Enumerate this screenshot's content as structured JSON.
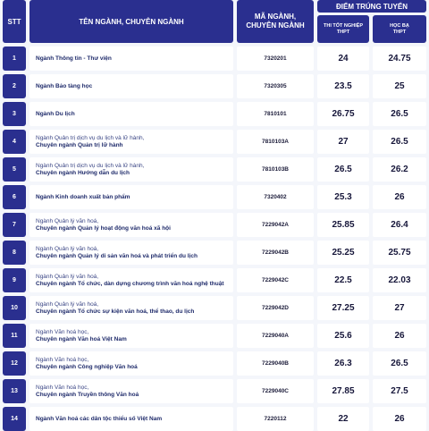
{
  "header": {
    "stt": "STT",
    "name": "TÊN NGÀNH, CHUYÊN NGÀNH",
    "code_line1": "MÃ NGÀNH,",
    "code_line2": "CHUYÊN NGÀNH",
    "score": "ĐIỂM TRÚNG TUYỂN",
    "score_pt_line1": "THI TỐT NGHIỆP",
    "score_pt_line2": "THPT",
    "score_hb_line1": "HỌC BẠ",
    "score_hb_line2": "THPT"
  },
  "rows": [
    {
      "stt": "1",
      "line1": "",
      "line2": "Ngành Thông tin - Thư viện",
      "code": "7320201",
      "pt": "24",
      "hb": "24.75"
    },
    {
      "stt": "2",
      "line1": "",
      "line2": "Ngành Bảo tàng học",
      "code": "7320305",
      "pt": "23.5",
      "hb": "25"
    },
    {
      "stt": "3",
      "line1": "",
      "line2": "Ngành Du lịch",
      "code": "7810101",
      "pt": "26.75",
      "hb": "26.5"
    },
    {
      "stt": "4",
      "line1": "Ngành Quản trị dịch vụ du lịch và lữ hành,",
      "line2": "Chuyên ngành Quản trị lữ hành",
      "code": "7810103A",
      "pt": "27",
      "hb": "26.5"
    },
    {
      "stt": "5",
      "line1": "Ngành Quản trị dịch vụ du lịch và lữ hành,",
      "line2": "Chuyên ngành Hướng dẫn du lịch",
      "code": "7810103B",
      "pt": "26.5",
      "hb": "26.2"
    },
    {
      "stt": "6",
      "line1": "",
      "line2": "Ngành Kinh doanh xuất bản phẩm",
      "code": "7320402",
      "pt": "25.3",
      "hb": "26"
    },
    {
      "stt": "7",
      "line1": "Ngành Quản lý văn hoá,",
      "line2": "Chuyên ngành Quản lý hoạt động văn hoá xã hội",
      "code": "7229042A",
      "pt": "25.85",
      "hb": "26.4"
    },
    {
      "stt": "8",
      "line1": "Ngành Quản lý văn hoá,",
      "line2": "Chuyên ngành Quản lý di sản văn hoá và phát triển du lịch",
      "code": "7229042B",
      "pt": "25.25",
      "hb": "25.75"
    },
    {
      "stt": "9",
      "line1": "Ngành Quản lý văn hoá,",
      "line2": "Chuyên ngành Tổ chức, dàn dựng chương trình văn hoá nghệ thuật",
      "code": "7229042C",
      "pt": "22.5",
      "hb": "22.03"
    },
    {
      "stt": "10",
      "line1": "Ngành Quản lý văn hoá,",
      "line2": "Chuyên ngành Tổ chức sự kiện văn hoá, thể thao, du lịch",
      "code": "7229042D",
      "pt": "27.25",
      "hb": "27"
    },
    {
      "stt": "11",
      "line1": "Ngành Văn hoá học,",
      "line2": "Chuyên ngành Văn hoá Việt Nam",
      "code": "7229040A",
      "pt": "25.6",
      "hb": "26"
    },
    {
      "stt": "12",
      "line1": "Ngành Văn hoá học,",
      "line2": "Chuyên ngành Công nghiệp Văn hoá",
      "code": "7229040B",
      "pt": "26.3",
      "hb": "26.5"
    },
    {
      "stt": "13",
      "line1": "Ngành Văn hoá học,",
      "line2": "Chuyên ngành Truyền thông Văn hoá",
      "code": "7229040C",
      "pt": "27.85",
      "hb": "27.5"
    },
    {
      "stt": "14",
      "line1": "",
      "line2": "Ngành Văn hoá các dân tộc thiểu số Việt Nam",
      "code": "7220112",
      "pt": "22",
      "hb": "26"
    }
  ]
}
